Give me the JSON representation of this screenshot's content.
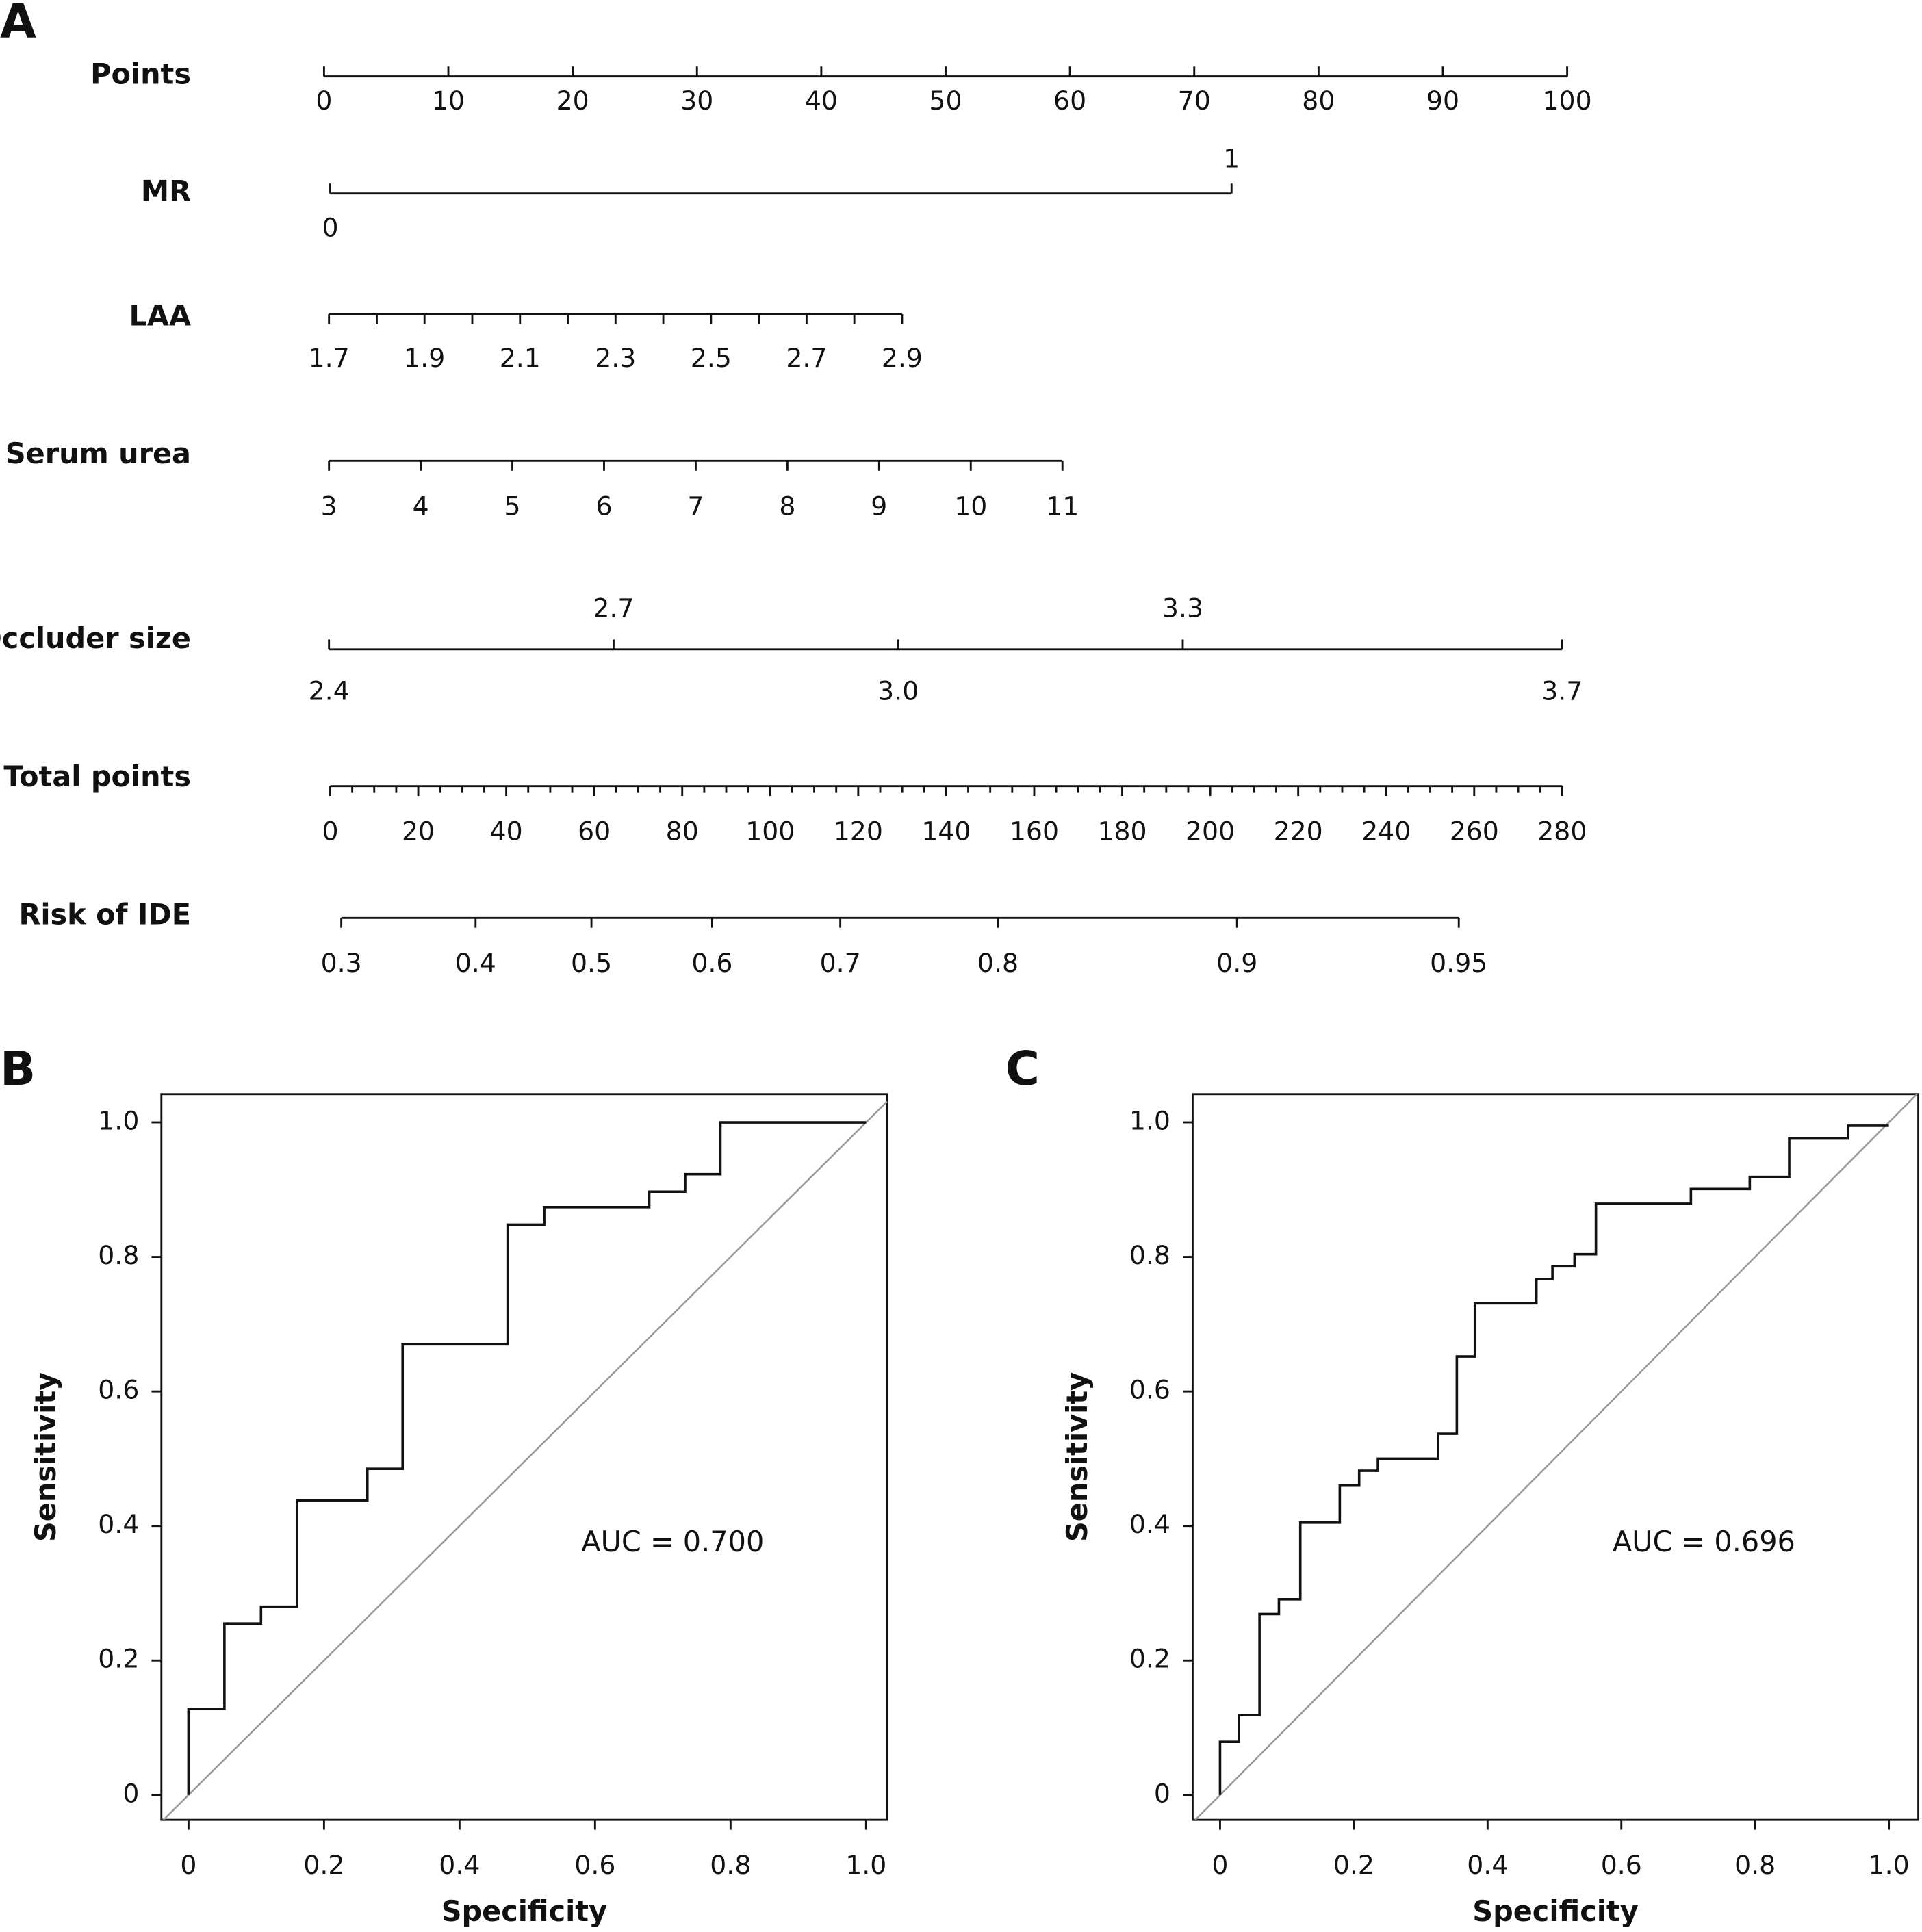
{
  "chart_data": [
    {
      "type": "nomogram",
      "panel": "A",
      "scales": [
        {
          "name": "Points",
          "range": [
            0,
            100
          ],
          "points_range": [
            0,
            100
          ],
          "ticks_below": [
            0,
            10,
            20,
            30,
            40,
            50,
            60,
            70,
            80,
            90,
            100
          ]
        },
        {
          "name": "MR",
          "range": [
            0,
            1
          ],
          "points_range": [
            0.5,
            73
          ],
          "ticks_above": [
            1
          ],
          "ticks_below": [
            0
          ]
        },
        {
          "name": "LAA",
          "range": [
            1.7,
            2.9
          ],
          "points_range": [
            0.4,
            46.5
          ],
          "ticks_below": [
            1.7,
            1.9,
            2.1,
            2.3,
            2.5,
            2.7,
            2.9
          ],
          "minor_ticks": [
            1.8,
            2.0,
            2.2,
            2.4,
            2.6,
            2.8
          ]
        },
        {
          "name": "Serum urea",
          "range": [
            3,
            11
          ],
          "points_range": [
            0.4,
            59.4
          ],
          "ticks_below": [
            3,
            4,
            5,
            6,
            7,
            8,
            9,
            10,
            11
          ]
        },
        {
          "name": "Occluder size",
          "range": [
            2.4,
            3.7
          ],
          "points_range": [
            0.4,
            99.6
          ],
          "ticks_above": [
            2.7,
            3.3
          ],
          "ticks_below": [
            2.4,
            {
              "value": 3,
              "label": "3.0"
            },
            3.7
          ]
        },
        {
          "name": "Total points",
          "range": [
            0,
            280
          ],
          "points_range": [
            0.5,
            99.6
          ],
          "ticks_below": [
            0,
            20,
            40,
            60,
            80,
            100,
            120,
            140,
            160,
            180,
            200,
            220,
            240,
            260,
            280
          ],
          "minor_ticks": [
            5,
            10,
            15,
            25,
            30,
            35,
            45,
            50,
            55,
            65,
            70,
            75,
            85,
            90,
            95,
            105,
            110,
            115,
            125,
            130,
            135,
            145,
            150,
            155,
            165,
            170,
            175,
            185,
            190,
            195,
            205,
            210,
            215,
            225,
            230,
            235,
            245,
            250,
            255,
            265,
            270,
            275
          ]
        },
        {
          "name": "Risk of IDE",
          "ticks_below": [
            0.3,
            0.4,
            0.5,
            0.6,
            0.7,
            0.8,
            0.9,
            0.95
          ],
          "tick_points": [
            1.39,
            12.19,
            21.51,
            31.22,
            41.53,
            54.21,
            73.44,
            91.28
          ]
        }
      ]
    },
    {
      "type": "line",
      "panel": "B",
      "xlabel": "Specificity",
      "ylabel": "Sensitivity",
      "annotation": "AUC = 0.700",
      "x": [
        0,
        0,
        0.053,
        0.053,
        0.107,
        0.107,
        0.16,
        0.16,
        0.264,
        0.264,
        0.316,
        0.316,
        0.471,
        0.471,
        0.525,
        0.525,
        0.68,
        0.68,
        0.733,
        0.733,
        0.785,
        0.785,
        1
      ],
      "series": [
        {
          "color": "#111111",
          "values": [
            0,
            0.128,
            0.128,
            0.255,
            0.255,
            0.28,
            0.28,
            0.438,
            0.438,
            0.485,
            0.485,
            0.67,
            0.67,
            0.848,
            0.848,
            0.874,
            0.874,
            0.897,
            0.897,
            0.923,
            0.923,
            1,
            1
          ]
        }
      ],
      "reference_line": true,
      "reference_color": "#999999",
      "xlim": [
        -0.04,
        1.031
      ],
      "ylim": [
        -0.037,
        1.042
      ],
      "xticks": [
        0,
        0.2,
        0.4,
        0.6,
        0.8,
        {
          "value": 1,
          "label": "1.0"
        }
      ],
      "yticks": [
        0,
        0.2,
        0.4,
        0.6,
        0.8,
        {
          "value": 1,
          "label": "1.0"
        }
      ]
    },
    {
      "type": "line",
      "panel": "C",
      "xlabel": "Specificity",
      "ylabel": "Sensitivity",
      "annotation": "AUC = 0.696",
      "x": [
        0,
        0,
        0.028,
        0.028,
        0.059,
        0.059,
        0.088,
        0.088,
        0.12,
        0.12,
        0.179,
        0.179,
        0.208,
        0.208,
        0.236,
        0.236,
        0.326,
        0.326,
        0.354,
        0.354,
        0.381,
        0.381,
        0.473,
        0.473,
        0.497,
        0.497,
        0.53,
        0.53,
        0.562,
        0.562,
        0.704,
        0.704,
        0.792,
        0.792,
        0.851,
        0.851,
        0.939,
        0.939,
        1
      ],
      "series": [
        {
          "color": "#111111",
          "values": [
            0,
            0.079,
            0.079,
            0.119,
            0.119,
            0.269,
            0.269,
            0.291,
            0.291,
            0.405,
            0.405,
            0.46,
            0.46,
            0.482,
            0.482,
            0.5,
            0.5,
            0.537,
            0.537,
            0.652,
            0.652,
            0.731,
            0.731,
            0.767,
            0.767,
            0.786,
            0.786,
            0.804,
            0.804,
            0.879,
            0.879,
            0.901,
            0.901,
            0.919,
            0.919,
            0.976,
            0.976,
            0.995,
            0.995
          ]
        }
      ],
      "reference_line": true,
      "reference_color": "#999999",
      "xlim": [
        -0.041,
        1.044
      ],
      "ylim": [
        -0.037,
        1.042
      ],
      "xticks": [
        0,
        0.2,
        0.4,
        0.6,
        0.8,
        {
          "value": 1,
          "label": "1.0"
        }
      ],
      "yticks": [
        0,
        0.2,
        0.4,
        0.6,
        0.8,
        {
          "value": 1,
          "label": "1.0"
        }
      ]
    }
  ]
}
